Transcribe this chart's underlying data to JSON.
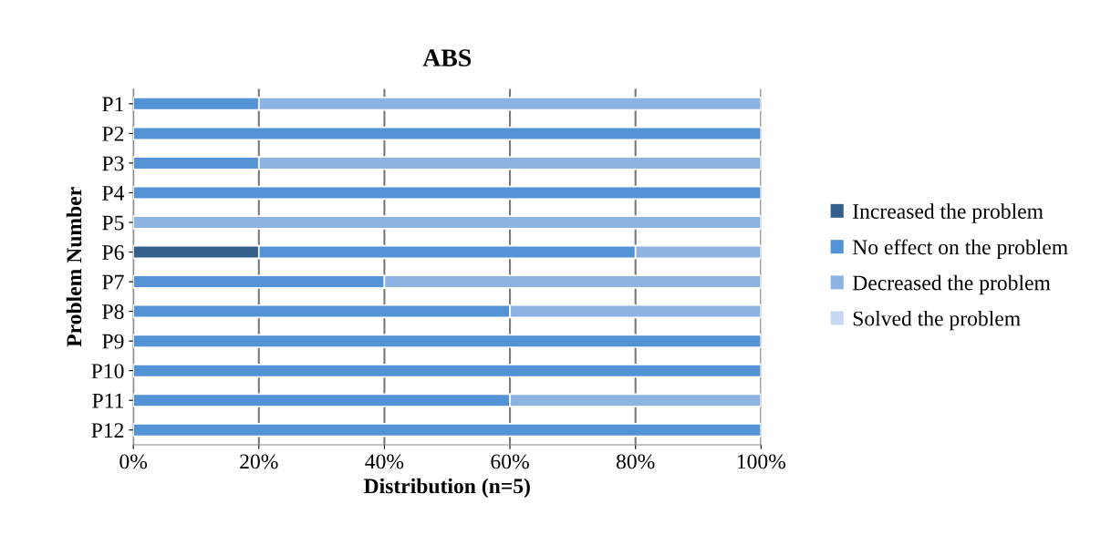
{
  "chart_data": {
    "type": "bar",
    "orientation": "horizontal",
    "stacked": true,
    "title": "ABS",
    "xlabel": "Distribution (n=5)",
    "ylabel": "Problem Number",
    "categories": [
      "P1",
      "P2",
      "P3",
      "P4",
      "P5",
      "P6",
      "P7",
      "P8",
      "P9",
      "P10",
      "P11",
      "P12"
    ],
    "series": [
      {
        "name": "Increased the problem",
        "color": "#355f8d",
        "values": [
          null,
          null,
          null,
          null,
          null,
          0.2,
          null,
          null,
          null,
          null,
          null,
          null
        ]
      },
      {
        "name": "No effect on the problem",
        "color": "#5492d6",
        "values": [
          0.2,
          1,
          0.2,
          1,
          null,
          0.6,
          0.4,
          0.6,
          1,
          1,
          0.6,
          1
        ]
      },
      {
        "name": "Decreased the problem",
        "color": "#8db3e2",
        "values": [
          0.8,
          null,
          0.8,
          null,
          1,
          0.2,
          0.6,
          0.4,
          null,
          null,
          0.4,
          null
        ]
      },
      {
        "name": "Solved the problem",
        "color": "#c6d9f1",
        "values": [
          null,
          null,
          null,
          null,
          null,
          null,
          null,
          null,
          null,
          null,
          null,
          null
        ]
      }
    ],
    "xlim": [
      0,
      1
    ],
    "xticks": [
      {
        "value": 0,
        "label": "0%"
      },
      {
        "value": 0.2,
        "label": "20%"
      },
      {
        "value": 0.4,
        "label": "40%"
      },
      {
        "value": 0.6,
        "label": "60%"
      },
      {
        "value": 0.8,
        "label": "80%"
      },
      {
        "value": 1,
        "label": "100%"
      }
    ],
    "grid": "x",
    "legend": "right"
  }
}
